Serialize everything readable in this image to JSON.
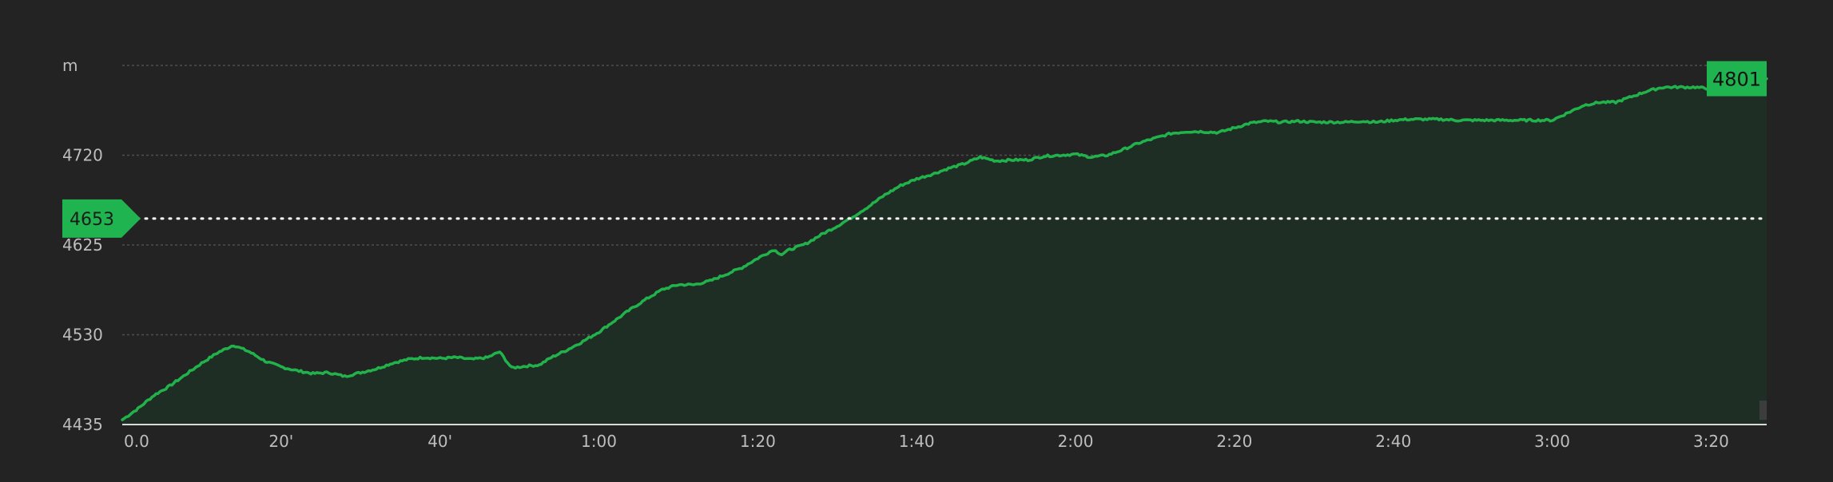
{
  "chart_data": {
    "type": "area",
    "ylabel": "m",
    "ylim": [
      4435,
      4815
    ],
    "xlim": [
      0,
      207
    ],
    "yticks": [
      {
        "value": 4435,
        "label": "4435"
      },
      {
        "value": 4530,
        "label": "4530"
      },
      {
        "value": 4625,
        "label": "4625"
      },
      {
        "value": 4720,
        "label": "4720"
      }
    ],
    "xticks": [
      {
        "value": 0,
        "label": "0.0"
      },
      {
        "value": 20,
        "label": "20'"
      },
      {
        "value": 40,
        "label": "40'"
      },
      {
        "value": 60,
        "label": "1:00"
      },
      {
        "value": 80,
        "label": "1:20"
      },
      {
        "value": 100,
        "label": "1:40"
      },
      {
        "value": 120,
        "label": "2:00"
      },
      {
        "value": 140,
        "label": "2:20"
      },
      {
        "value": 160,
        "label": "2:40"
      },
      {
        "value": 180,
        "label": "3:00"
      },
      {
        "value": 200,
        "label": "3:20"
      }
    ],
    "grid": true,
    "reference_line": {
      "value": 4653,
      "label": "4653"
    },
    "end_label": {
      "value": 4801,
      "label": "4801"
    },
    "x": [
      0,
      2,
      4,
      6,
      8,
      10,
      12,
      14,
      16,
      18,
      20,
      22,
      24,
      26,
      28,
      30,
      32,
      34,
      36,
      38,
      40,
      42,
      44,
      46,
      47.5,
      49,
      51,
      52.5,
      54,
      56,
      58,
      60,
      62,
      64,
      66,
      68,
      70,
      72,
      74,
      76,
      78,
      80,
      82,
      83,
      84,
      86,
      88,
      90,
      92,
      94,
      96,
      98,
      100,
      102,
      104,
      106,
      108,
      110,
      112,
      114,
      116,
      118,
      120,
      122,
      124,
      126,
      128,
      130,
      132,
      134,
      136,
      138,
      140,
      142,
      144,
      146,
      148,
      150,
      152,
      154,
      156,
      158,
      160,
      162,
      164,
      166,
      168,
      170,
      172,
      174,
      176,
      178,
      180,
      182,
      184,
      186,
      188,
      190,
      192,
      194,
      196,
      198,
      200,
      202,
      204,
      206,
      207
    ],
    "series": [
      {
        "values": [
          4440,
          4452,
          4466,
          4476,
          4488,
          4500,
          4511,
          4519,
          4512,
          4502,
          4496,
          4492,
          4489,
          4490,
          4486,
          4490,
          4494,
          4500,
          4504,
          4506,
          4505,
          4506,
          4504,
          4506,
          4512,
          4495,
          4497,
          4498,
          4506,
          4514,
          4523,
          4533,
          4545,
          4557,
          4568,
          4578,
          4583,
          4583,
          4587,
          4594,
          4601,
          4611,
          4620,
          4615,
          4620,
          4626,
          4636,
          4645,
          4655,
          4666,
          4678,
          4688,
          4695,
          4700,
          4706,
          4711,
          4718,
          4714,
          4715,
          4715,
          4719,
          4720,
          4721,
          4718,
          4720,
          4726,
          4733,
          4738,
          4743,
          4745,
          4745,
          4744,
          4749,
          4754,
          4756,
          4755,
          4756,
          4755,
          4755,
          4755,
          4756,
          4755,
          4757,
          4758,
          4758,
          4758,
          4757,
          4757,
          4757,
          4757,
          4757,
          4757,
          4757,
          4765,
          4773,
          4776,
          4776,
          4782,
          4788,
          4792,
          4792,
          4792,
          4790,
          4792,
          4794,
          4797,
          4801
        ]
      }
    ]
  }
}
